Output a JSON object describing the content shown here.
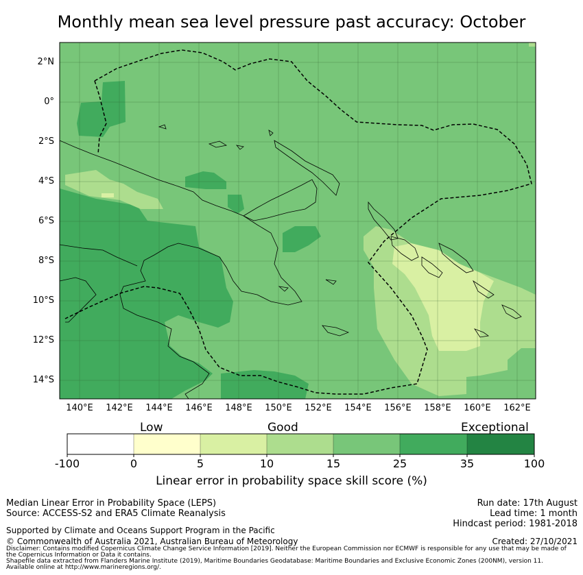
{
  "title": "Monthly mean sea level pressure past accuracy: October",
  "map": {
    "lat_ticks": [
      "2°N",
      "0°",
      "2°S",
      "4°S",
      "6°S",
      "8°S",
      "10°S",
      "12°S",
      "14°S"
    ],
    "lon_ticks": [
      "140°E",
      "142°E",
      "144°E",
      "146°E",
      "148°E",
      "150°E",
      "152°E",
      "154°E",
      "156°E",
      "158°E",
      "160°E",
      "162°E"
    ],
    "lon_range": [
      139,
      163
    ],
    "lat_range": [
      -15,
      3
    ],
    "gridlines": true
  },
  "colorbar": {
    "categories": [
      "Low",
      "Good",
      "Exceptional"
    ],
    "ticks": [
      "-100",
      "0",
      "5",
      "10",
      "15",
      "25",
      "35",
      "100"
    ],
    "colors": [
      "#ffffff",
      "#ffffcc",
      "#d9f0a3",
      "#addd8e",
      "#78c679",
      "#41ab5d",
      "#238443"
    ],
    "label": "Linear error in probability space skill score (%)"
  },
  "info_left": {
    "line1": "Median Linear Error in Probability Space (LEPS)",
    "line2": "Source: ACCESS-S2 and ERA5 Climate Reanalysis",
    "line3": "Supported by Climate and Oceans Support Program in the Pacific",
    "line4": "© Commonwealth of Australia 2021, Australian Bureau of Meteorology"
  },
  "info_right": {
    "run_date": "Run date: 17th August",
    "lead_time": "Lead time: 1 month",
    "hindcast": "Hindcast period: 1981-2018",
    "created": "Created: 27/10/2021"
  },
  "disclaimer": {
    "line1": "Disclaimer: Contains modified Copernicus Climate Change Service Information [2019]. Neither the European Commission nor ECMWF is responsible for any use that may be made of",
    "line2": "the Copernicus Information or Data it contains.",
    "line3": "Shapefile data extracted from Flanders Marine Institute (2019), Maritime Boundaries Geodatabase: Maritime Boundaries and Exclusive Economic Zones (200NM), version 11.",
    "line4": "Available online at http://www.marineregions.org/."
  }
}
